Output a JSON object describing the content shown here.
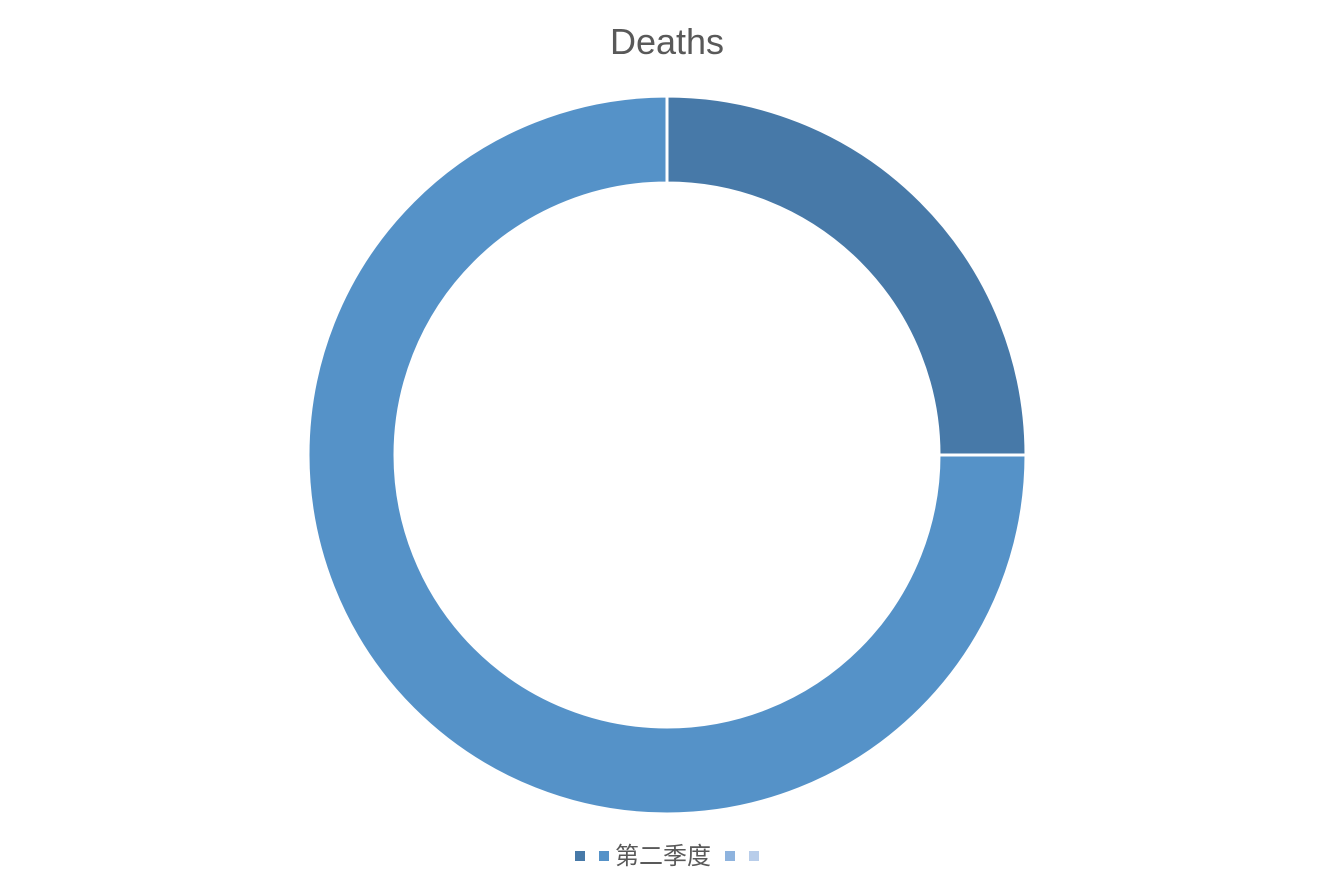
{
  "chart_data": {
    "type": "pie",
    "subtype": "doughnut",
    "title": "Deaths",
    "categories": [
      "",
      "第二季度",
      "",
      ""
    ],
    "series": [
      {
        "values": [
          25,
          75,
          0,
          0
        ]
      }
    ],
    "colors": [
      "#4779A8",
      "#5592C8",
      "#8EB3DE",
      "#B8CDEA"
    ],
    "legend_position": "bottom"
  }
}
